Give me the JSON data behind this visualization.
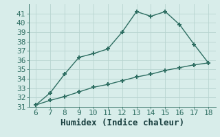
{
  "xlabel": "Humidex (Indice chaleur)",
  "x": [
    6,
    7,
    8,
    9,
    10,
    11,
    12,
    13,
    14,
    15,
    16,
    17,
    18
  ],
  "y_upper": [
    31.2,
    32.5,
    34.5,
    36.3,
    36.7,
    37.2,
    39.0,
    41.2,
    40.7,
    41.2,
    39.8,
    37.7,
    35.7
  ],
  "y_lower": [
    31.2,
    31.7,
    32.1,
    32.6,
    33.1,
    33.4,
    33.8,
    34.2,
    34.5,
    34.9,
    35.2,
    35.5,
    35.7
  ],
  "line_color": "#2e6e62",
  "bg_color": "#d8edea",
  "grid_color": "#b8d4d0",
  "tick_color": "#2e6e62",
  "label_color": "#1a4040",
  "ylim": [
    31,
    42
  ],
  "xlim": [
    5.5,
    18.5
  ],
  "yticks": [
    31,
    32,
    33,
    34,
    35,
    36,
    37,
    38,
    39,
    40,
    41
  ],
  "xticks": [
    6,
    7,
    8,
    9,
    10,
    11,
    12,
    13,
    14,
    15,
    16,
    17,
    18
  ],
  "marker": "+",
  "markersize": 5,
  "markeredgewidth": 1.5,
  "linewidth": 1.0,
  "font_size": 8
}
